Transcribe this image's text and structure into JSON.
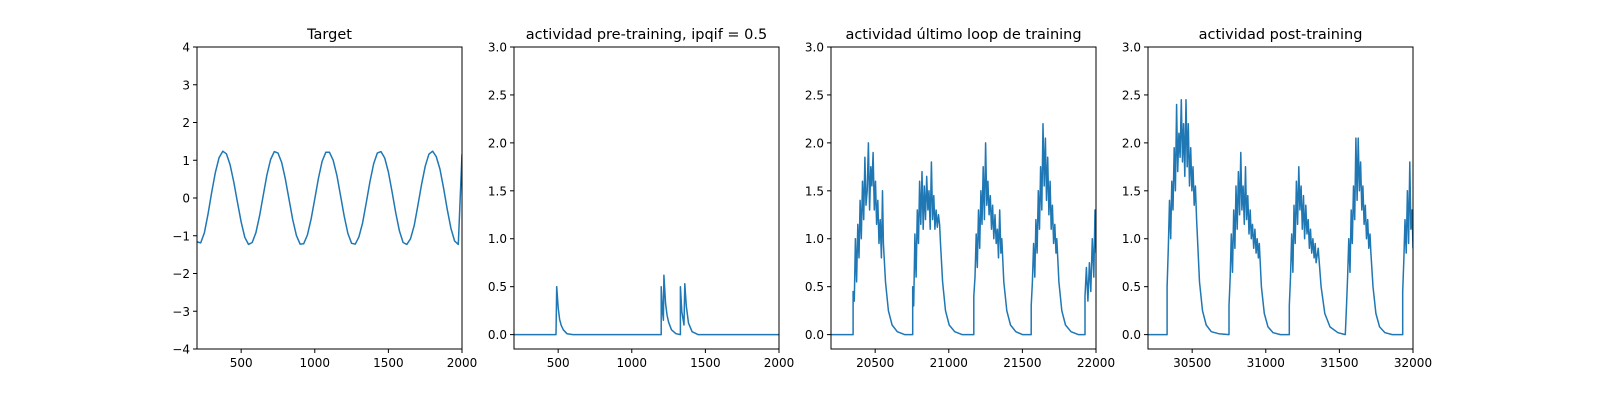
{
  "chart_data": [
    {
      "type": "line",
      "title": "Target",
      "xlim": [
        200,
        2000
      ],
      "ylim": [
        -4,
        4
      ],
      "xticks": [
        500,
        1000,
        1500,
        2000
      ],
      "xtick_labels": [
        "500",
        "1000",
        "1500",
        "2000"
      ],
      "yticks": [
        -4,
        -3,
        -2,
        -1,
        0,
        1,
        2,
        3,
        4
      ],
      "ytick_labels": [
        "−4",
        "−3",
        "−2",
        "−1",
        "0",
        "1",
        "2",
        "3",
        "4"
      ],
      "color": "#1f77b4",
      "series": [
        {
          "x": [
            200,
            225,
            250,
            275,
            300,
            325,
            350,
            375,
            400,
            425,
            450,
            475,
            500,
            525,
            550,
            575,
            600,
            625,
            650,
            675,
            700,
            725,
            750,
            775,
            800,
            825,
            850,
            875,
            900,
            925,
            950,
            975,
            1000,
            1025,
            1050,
            1075,
            1100,
            1125,
            1150,
            1175,
            1200,
            1225,
            1250,
            1275,
            1300,
            1325,
            1350,
            1375,
            1400,
            1425,
            1450,
            1475,
            1500,
            1525,
            1550,
            1575,
            1600,
            1625,
            1650,
            1675,
            1700,
            1725,
            1750,
            1775,
            1800,
            1825,
            1850,
            1875,
            1900,
            1925,
            1950,
            1975,
            2000
          ],
          "y": [
            -1.16,
            -1.19,
            -0.92,
            -0.43,
            0.15,
            0.68,
            1.07,
            1.24,
            1.17,
            0.88,
            0.42,
            -0.12,
            -0.64,
            -1.04,
            -1.23,
            -1.18,
            -0.92,
            -0.47,
            0.08,
            0.61,
            1.02,
            1.23,
            1.19,
            0.94,
            0.51,
            -0.03,
            -0.57,
            -0.99,
            -1.22,
            -1.21,
            -0.98,
            -0.56,
            -0.02,
            0.53,
            0.97,
            1.21,
            1.21,
            1.0,
            0.6,
            0.07,
            -0.48,
            -0.94,
            -1.2,
            -1.22,
            -1.03,
            -0.66,
            -0.12,
            0.44,
            0.91,
            1.19,
            1.23,
            1.06,
            0.69,
            0.16,
            -0.4,
            -0.87,
            -1.18,
            -1.23,
            -1.08,
            -0.73,
            -0.21,
            0.35,
            0.84,
            1.16,
            1.24,
            1.1,
            0.77,
            0.26,
            -0.31,
            -0.81,
            -1.14,
            -1.23,
            1.16
          ]
        }
      ]
    },
    {
      "type": "line",
      "title": "actividad pre-training, ipqif = 0.5",
      "xlim": [
        200,
        2000
      ],
      "ylim": [
        -0.15,
        3.0
      ],
      "xticks": [
        500,
        1000,
        1500,
        2000
      ],
      "xtick_labels": [
        "500",
        "1000",
        "1500",
        "2000"
      ],
      "yticks": [
        0.0,
        0.5,
        1.0,
        1.5,
        2.0,
        2.5,
        3.0
      ],
      "ytick_labels": [
        "0.0",
        "0.5",
        "1.0",
        "1.5",
        "2.0",
        "2.5",
        "3.0"
      ],
      "color": "#1f77b4",
      "series": [
        {
          "x": [
            200,
            485,
            490,
            500,
            510,
            520,
            535,
            560,
            600,
            1200,
            1200,
            1210,
            1215,
            1218,
            1230,
            1240,
            1250,
            1270,
            1300,
            1330,
            1330,
            1340,
            1355,
            1360,
            1370,
            1385,
            1410,
            1450,
            2000
          ],
          "y": [
            0,
            0,
            0.5,
            0.28,
            0.16,
            0.1,
            0.05,
            0.01,
            0,
            0,
            0.5,
            0.22,
            0.15,
            0.62,
            0.32,
            0.2,
            0.13,
            0.05,
            0.01,
            0,
            0.5,
            0.24,
            0.1,
            0.53,
            0.3,
            0.12,
            0.03,
            0,
            0
          ]
        }
      ]
    },
    {
      "type": "line",
      "title": "actividad último loop de training",
      "xlim": [
        20200,
        22000
      ],
      "ylim": [
        -0.15,
        3.0
      ],
      "xticks": [
        20500,
        21000,
        21500,
        22000
      ],
      "xtick_labels": [
        "20500",
        "21000",
        "21500",
        "22000"
      ],
      "yticks": [
        0.0,
        0.5,
        1.0,
        1.5,
        2.0,
        2.5,
        3.0
      ],
      "ytick_labels": [
        "0.0",
        "0.5",
        "1.0",
        "1.5",
        "2.0",
        "2.5",
        "3.0"
      ],
      "color": "#1f77b4",
      "series": [
        {
          "x": [
            20200,
            20350,
            20350,
            20358,
            20366,
            20374,
            20382,
            20390,
            20398,
            20406,
            20414,
            20422,
            20430,
            20438,
            20446,
            20454,
            20462,
            20470,
            20478,
            20486,
            20494,
            20502,
            20510,
            20518,
            20526,
            20534,
            20542,
            20550,
            20556,
            20570,
            20590,
            20615,
            20650,
            20700,
            20745,
            20755,
            20755,
            20762,
            20770,
            20778,
            20786,
            20794,
            20802,
            20810,
            20818,
            20826,
            20834,
            20842,
            20850,
            20858,
            20866,
            20874,
            20882,
            20890,
            20898,
            20906,
            20914,
            20922,
            20930,
            20938,
            20944,
            20958,
            20978,
            21003,
            21040,
            21090,
            21170,
            21170,
            21178,
            21186,
            21194,
            21202,
            21210,
            21218,
            21226,
            21234,
            21242,
            21250,
            21258,
            21266,
            21274,
            21282,
            21290,
            21298,
            21306,
            21314,
            21322,
            21330,
            21338,
            21346,
            21354,
            21360,
            21374,
            21394,
            21419,
            21455,
            21500,
            21560,
            21560,
            21568,
            21576,
            21584,
            21592,
            21600,
            21608,
            21616,
            21624,
            21632,
            21640,
            21648,
            21656,
            21664,
            21672,
            21680,
            21688,
            21696,
            21704,
            21712,
            21720,
            21728,
            21734,
            21748,
            21768,
            21793,
            21830,
            21880,
            21925,
            21925,
            21935,
            21945,
            21955,
            21965,
            21975,
            21985,
            21993,
            22000
          ],
          "y": [
            0,
            0,
            0.45,
            0.35,
            1.0,
            0.55,
            1.15,
            0.8,
            1.4,
            1.0,
            1.6,
            1.2,
            1.85,
            1.35,
            1.5,
            2.0,
            1.3,
            1.75,
            1.55,
            1.9,
            1.3,
            1.6,
            1.15,
            1.4,
            0.95,
            1.2,
            0.8,
            1.5,
            0.95,
            0.55,
            0.25,
            0.1,
            0.03,
            0,
            0,
            0,
            0.5,
            0.3,
            1.05,
            0.6,
            1.3,
            0.95,
            1.6,
            1.15,
            1.7,
            1.1,
            1.55,
            1.2,
            1.65,
            1.3,
            1.5,
            1.1,
            1.8,
            1.2,
            1.45,
            1.1,
            1.3,
            1.12,
            1.25,
            1.15,
            0.95,
            0.55,
            0.25,
            0.1,
            0.03,
            0,
            0,
            0.4,
            0.6,
            1.05,
            0.7,
            1.3,
            0.9,
            1.5,
            1.15,
            1.75,
            1.2,
            2.0,
            1.35,
            1.6,
            1.25,
            1.45,
            1.1,
            1.35,
            1.0,
            1.25,
            0.95,
            1.1,
            0.8,
            1.3,
            0.85,
            1.0,
            0.55,
            0.25,
            0.1,
            0.03,
            0,
            0,
            0.3,
            0.55,
            0.95,
            0.6,
            1.2,
            0.85,
            1.5,
            1.1,
            1.75,
            1.3,
            2.2,
            1.55,
            2.05,
            1.4,
            1.85,
            1.25,
            1.6,
            1.1,
            1.35,
            0.95,
            1.15,
            0.85,
            1.0,
            0.55,
            0.25,
            0.1,
            0.03,
            0,
            0,
            0.4,
            0.7,
            0.35,
            0.75,
            0.45,
            1.0,
            0.6,
            1.3,
            0.85
          ]
        }
      ]
    },
    {
      "type": "line",
      "title": "actividad post-training",
      "xlim": [
        30200,
        32000
      ],
      "ylim": [
        -0.15,
        3.0
      ],
      "xticks": [
        30500,
        31000,
        31500,
        32000
      ],
      "xtick_labels": [
        "30500",
        "31000",
        "31500",
        "32000"
      ],
      "yticks": [
        0.0,
        0.5,
        1.0,
        1.5,
        2.0,
        2.5,
        3.0
      ],
      "ytick_labels": [
        "0.0",
        "0.5",
        "1.0",
        "1.5",
        "2.0",
        "2.5",
        "3.0"
      ],
      "color": "#1f77b4",
      "series": [
        {
          "x": [
            30200,
            30330,
            30330,
            30338,
            30346,
            30354,
            30362,
            30370,
            30378,
            30386,
            30394,
            30402,
            30410,
            30418,
            30426,
            30434,
            30442,
            30450,
            30458,
            30466,
            30474,
            30482,
            30490,
            30498,
            30506,
            30514,
            30522,
            30530,
            30536,
            30550,
            30570,
            30595,
            30630,
            30680,
            30750,
            30750,
            30758,
            30766,
            30774,
            30782,
            30790,
            30798,
            30806,
            30814,
            30822,
            30830,
            30838,
            30846,
            30854,
            30862,
            30870,
            30878,
            30886,
            30894,
            30902,
            30910,
            30918,
            30926,
            30934,
            30942,
            30950,
            30956,
            30970,
            30990,
            31015,
            31050,
            31100,
            31160,
            31160,
            31168,
            31176,
            31184,
            31192,
            31200,
            31208,
            31216,
            31224,
            31232,
            31240,
            31248,
            31256,
            31264,
            31272,
            31280,
            31288,
            31296,
            31304,
            31312,
            31320,
            31328,
            31336,
            31342,
            31356,
            31376,
            31401,
            31436,
            31490,
            31540,
            31540,
            31548,
            31556,
            31564,
            31572,
            31580,
            31588,
            31596,
            31604,
            31612,
            31620,
            31628,
            31636,
            31644,
            31652,
            31660,
            31668,
            31676,
            31684,
            31692,
            31700,
            31708,
            31714,
            31728,
            31748,
            31773,
            31810,
            31860,
            31930,
            31930,
            31938,
            31946,
            31954,
            31962,
            31970,
            31978,
            31986,
            31994,
            32000
          ],
          "y": [
            0,
            0,
            0.5,
            0.9,
            1.4,
            1.0,
            1.6,
            1.3,
            1.95,
            1.5,
            2.4,
            1.7,
            2.1,
            1.85,
            2.45,
            1.8,
            2.2,
            1.65,
            2.45,
            1.75,
            2.2,
            1.55,
            1.95,
            1.5,
            1.75,
            1.35,
            1.55,
            1.2,
            1.0,
            0.55,
            0.25,
            0.1,
            0.03,
            0.01,
            0,
            0.3,
            0.6,
            1.05,
            0.65,
            1.3,
            0.9,
            1.55,
            1.1,
            1.7,
            1.25,
            1.9,
            1.3,
            1.55,
            1.15,
            1.75,
            1.2,
            1.45,
            1.05,
            1.3,
            1.0,
            1.15,
            0.9,
            1.1,
            0.85,
            1.0,
            0.8,
            0.95,
            0.5,
            0.22,
            0.08,
            0.02,
            0,
            0,
            0.3,
            0.6,
            1.05,
            0.65,
            1.35,
            0.95,
            1.6,
            1.15,
            1.75,
            1.3,
            1.55,
            1.1,
            1.45,
            1.0,
            1.35,
            1.05,
            1.2,
            0.9,
            1.1,
            0.85,
            1.0,
            0.8,
            0.95,
            0.75,
            0.9,
            0.5,
            0.22,
            0.08,
            0.02,
            0,
            0,
            0.3,
            0.6,
            1.0,
            0.65,
            1.3,
            0.95,
            1.55,
            1.2,
            2.05,
            1.4,
            2.05,
            1.5,
            1.8,
            1.3,
            1.55,
            1.15,
            1.35,
            1.0,
            1.2,
            0.9,
            1.05,
            0.85,
            0.5,
            0.22,
            0.08,
            0.02,
            0,
            0,
            0.45,
            0.8,
            1.2,
            0.85,
            1.5,
            0.95,
            1.8,
            1.1,
            1.3,
            0.9
          ]
        }
      ]
    }
  ]
}
